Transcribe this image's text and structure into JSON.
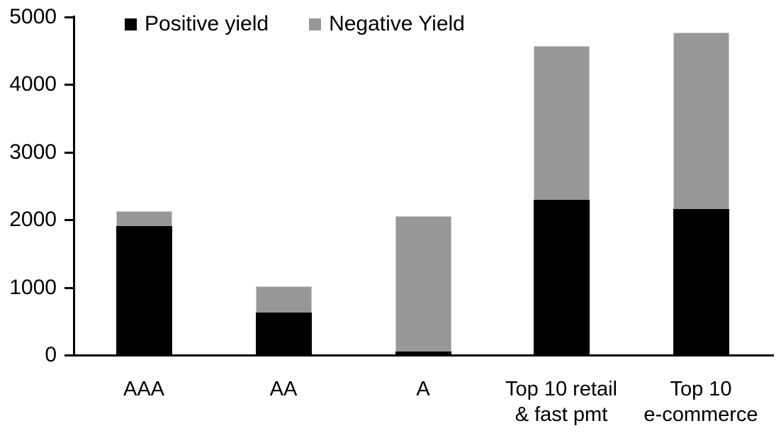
{
  "chart_data": {
    "type": "bar",
    "stacked": true,
    "title": "",
    "xlabel": "",
    "ylabel": "",
    "categories": [
      "AAA",
      "AA",
      "A",
      "Top 10 retail & fast pmt",
      "Top 10 e-commerce"
    ],
    "category_label_lines": [
      [
        "AAA"
      ],
      [
        "AA"
      ],
      [
        "A"
      ],
      [
        "Top 10 retail",
        "& fast pmt"
      ],
      [
        "Top 10",
        "e-commerce"
      ]
    ],
    "series": [
      {
        "name": "Positive yield",
        "color": "#000000",
        "values": [
          1900,
          620,
          40,
          2290,
          2150
        ]
      },
      {
        "name": "Negative Yield",
        "color": "#979797",
        "values": [
          220,
          390,
          2000,
          2270,
          2610
        ]
      }
    ],
    "stack_totals": [
      2120,
      1010,
      2040,
      4560,
      4760
    ],
    "ylim": [
      0,
      5000
    ],
    "yticks": [
      0,
      1000,
      2000,
      3000,
      4000,
      5000
    ],
    "ytick_labels": [
      "0",
      "1000",
      "2000",
      "3000",
      "4000",
      "5000"
    ],
    "grid": false,
    "legend_position": "top-left-inside",
    "axis_color": "#000000",
    "background_color": "#ffffff"
  }
}
